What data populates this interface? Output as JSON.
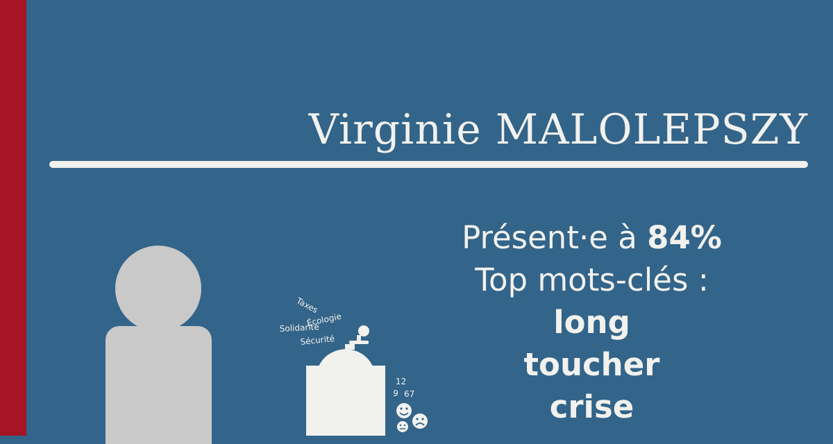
{
  "name": "Virginie MALOLEPSZY",
  "presence_prefix": "Présent·e à ",
  "presence_value": "84%",
  "keywords_heading": "Top mots-clés :",
  "top_keywords": [
    "long",
    "toucher",
    "crise"
  ],
  "mill_keywords": [
    "Taxes",
    "Écologie",
    "Solidarité",
    "Sécurité"
  ],
  "mill_numbers": [
    "12",
    "9",
    "67"
  ],
  "colors": {
    "background": "#336489",
    "accent_bar": "#a51524",
    "text": "#f1f1ee",
    "silhouette": "#c9c9c9"
  },
  "icons": [
    "person-silhouette-icon",
    "grinder-icon",
    "happy-face-icon",
    "sad-face-icon",
    "neutral-face-icon"
  ]
}
